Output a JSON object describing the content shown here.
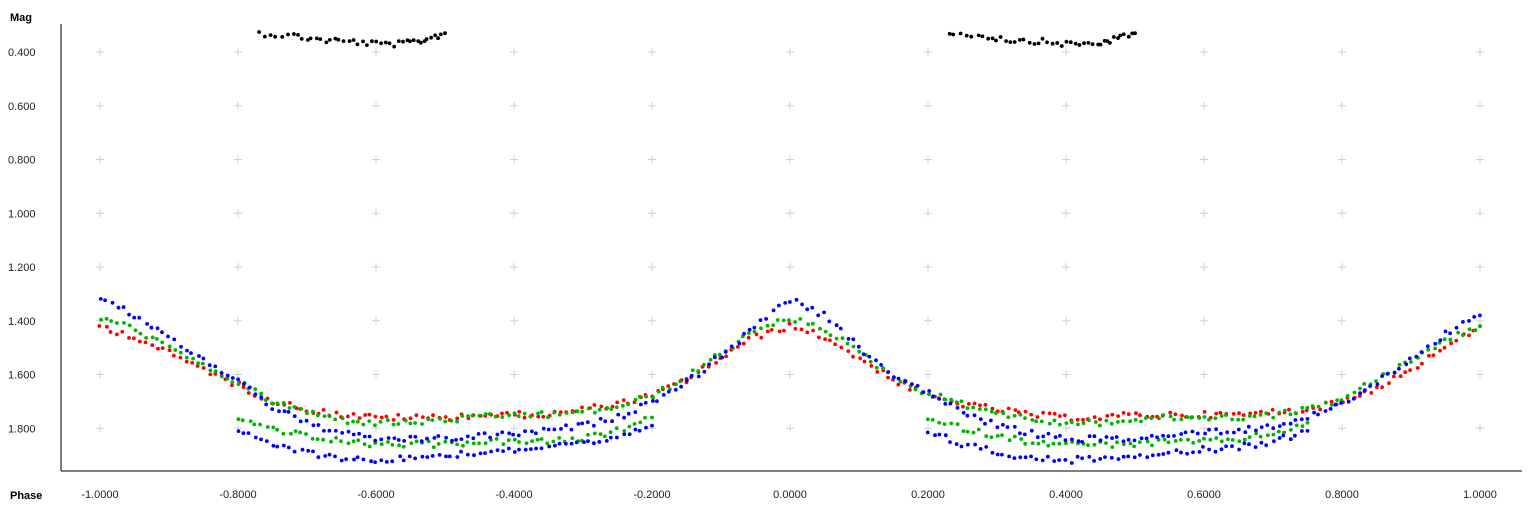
{
  "chart_data": {
    "type": "scatter",
    "title": "",
    "xlabel": "Phase",
    "ylabel": "Mag",
    "xlim": [
      -1.0,
      1.0
    ],
    "ylim": [
      1.92,
      0.34
    ],
    "y_inverted": true,
    "grid": "plus-markers",
    "x_ticks": [
      -1.0,
      -0.8,
      -0.6,
      -0.4,
      -0.2,
      0.0,
      0.2,
      0.4,
      0.6,
      0.8,
      1.0
    ],
    "x_tick_labels": [
      "-1.0000",
      "-0.8000",
      "-0.6000",
      "-0.4000",
      "-0.2000",
      "0.0000",
      "0.2000",
      "0.4000",
      "0.6000",
      "0.8000",
      "1.0000"
    ],
    "y_ticks": [
      0.4,
      0.6,
      0.8,
      1.0,
      1.2,
      1.4,
      1.6,
      1.8
    ],
    "y_tick_labels": [
      "0.400",
      "0.600",
      "0.800",
      "1.000",
      "1.200",
      "1.400",
      "1.600",
      "1.800"
    ],
    "series": [
      {
        "color": "#000000",
        "segments": [
          {
            "x": [
              -0.77,
              -0.72,
              -0.68,
              -0.64,
              -0.6,
              -0.56,
              -0.53,
              -0.5
            ],
            "y": [
              0.33,
              0.34,
              0.355,
              0.36,
              0.37,
              0.37,
              0.355,
              0.33
            ]
          },
          {
            "x": [
              0.23,
              0.28,
              0.32,
              0.36,
              0.4,
              0.44,
              0.47,
              0.5
            ],
            "y": [
              0.33,
              0.34,
              0.355,
              0.36,
              0.37,
              0.37,
              0.355,
              0.33
            ]
          }
        ]
      },
      {
        "color": "#ff0000",
        "segments": [
          {
            "x": [
              -1.0,
              -0.95,
              -0.9,
              -0.85,
              -0.8,
              -0.75,
              -0.7,
              -0.65,
              -0.6,
              -0.55,
              -0.5,
              -0.45,
              -0.4,
              -0.35,
              -0.3,
              -0.25,
              -0.2,
              -0.15,
              -0.1,
              -0.05,
              0.0,
              0.05,
              0.1,
              0.15,
              0.2,
              0.25,
              0.3,
              0.35,
              0.4,
              0.45,
              0.5,
              0.55,
              0.6,
              0.65,
              0.7,
              0.75,
              0.8,
              0.85,
              0.9,
              0.95,
              1.0
            ],
            "y": [
              1.42,
              1.46,
              1.52,
              1.58,
              1.64,
              1.7,
              1.73,
              1.75,
              1.76,
              1.76,
              1.76,
              1.75,
              1.75,
              1.75,
              1.73,
              1.71,
              1.68,
              1.62,
              1.54,
              1.46,
              1.42,
              1.46,
              1.54,
              1.62,
              1.68,
              1.71,
              1.73,
              1.75,
              1.76,
              1.76,
              1.75,
              1.75,
              1.75,
              1.75,
              1.74,
              1.73,
              1.7,
              1.65,
              1.58,
              1.5,
              1.42
            ]
          }
        ]
      },
      {
        "color": "#00b400",
        "segments": [
          {
            "x": [
              -1.0,
              -0.95,
              -0.9,
              -0.85,
              -0.8,
              -0.75,
              -0.7,
              -0.65,
              -0.6,
              -0.55,
              -0.5,
              -0.45,
              -0.4,
              -0.35,
              -0.3,
              -0.25,
              -0.2,
              -0.15,
              -0.1,
              -0.05,
              0.0,
              0.05,
              0.1,
              0.15,
              0.2,
              0.25,
              0.3,
              0.35,
              0.4,
              0.45,
              0.5,
              0.55,
              0.6,
              0.65,
              0.7,
              0.75,
              0.8,
              0.85,
              0.9,
              0.95,
              1.0
            ],
            "y": [
              1.39,
              1.43,
              1.5,
              1.57,
              1.63,
              1.7,
              1.74,
              1.77,
              1.78,
              1.78,
              1.77,
              1.76,
              1.75,
              1.75,
              1.74,
              1.72,
              1.68,
              1.61,
              1.52,
              1.44,
              1.39,
              1.43,
              1.52,
              1.61,
              1.67,
              1.71,
              1.74,
              1.77,
              1.78,
              1.78,
              1.77,
              1.76,
              1.76,
              1.76,
              1.75,
              1.73,
              1.69,
              1.62,
              1.55,
              1.47,
              1.42
            ]
          },
          {
            "x": [
              -0.8,
              -0.75,
              -0.7,
              -0.65,
              -0.6,
              -0.55,
              -0.5,
              -0.45,
              -0.4,
              -0.35,
              -0.3,
              -0.25,
              -0.2
            ],
            "y": [
              1.77,
              1.8,
              1.83,
              1.85,
              1.86,
              1.86,
              1.86,
              1.85,
              1.85,
              1.85,
              1.84,
              1.81,
              1.76
            ]
          },
          {
            "x": [
              0.2,
              0.25,
              0.3,
              0.35,
              0.4,
              0.45,
              0.5,
              0.55,
              0.6,
              0.65,
              0.7,
              0.75
            ],
            "y": [
              1.77,
              1.8,
              1.83,
              1.85,
              1.86,
              1.86,
              1.86,
              1.85,
              1.85,
              1.84,
              1.82,
              1.78
            ]
          }
        ]
      },
      {
        "color": "#0000ff",
        "segments": [
          {
            "x": [
              -1.0,
              -0.95,
              -0.9,
              -0.85,
              -0.8,
              -0.75,
              -0.7,
              -0.65,
              -0.6,
              -0.55,
              -0.5,
              -0.45,
              -0.4,
              -0.35,
              -0.3,
              -0.25,
              -0.2,
              -0.15,
              -0.1,
              -0.05,
              0.0,
              0.05,
              0.1,
              0.15,
              0.2,
              0.25,
              0.3,
              0.35,
              0.4,
              0.45,
              0.5,
              0.55,
              0.6,
              0.65,
              0.7,
              0.75,
              0.8,
              0.85,
              0.9,
              0.95,
              1.0
            ],
            "y": [
              1.32,
              1.38,
              1.46,
              1.55,
              1.62,
              1.72,
              1.78,
              1.82,
              1.84,
              1.84,
              1.84,
              1.83,
              1.82,
              1.81,
              1.79,
              1.76,
              1.7,
              1.63,
              1.53,
              1.42,
              1.32,
              1.38,
              1.5,
              1.6,
              1.67,
              1.74,
              1.79,
              1.82,
              1.84,
              1.84,
              1.84,
              1.83,
              1.81,
              1.81,
              1.79,
              1.76,
              1.71,
              1.63,
              1.54,
              1.45,
              1.38
            ]
          },
          {
            "x": [
              -0.8,
              -0.75,
              -0.7,
              -0.65,
              -0.6,
              -0.55,
              -0.5,
              -0.45,
              -0.4,
              -0.35,
              -0.3,
              -0.25,
              -0.2
            ],
            "y": [
              1.81,
              1.86,
              1.89,
              1.91,
              1.92,
              1.91,
              1.9,
              1.89,
              1.88,
              1.87,
              1.86,
              1.84,
              1.79
            ]
          },
          {
            "x": [
              0.2,
              0.25,
              0.3,
              0.35,
              0.4,
              0.45,
              0.5,
              0.55,
              0.6,
              0.65,
              0.7,
              0.75
            ],
            "y": [
              1.81,
              1.86,
              1.89,
              1.91,
              1.92,
              1.91,
              1.9,
              1.89,
              1.88,
              1.87,
              1.85,
              1.81
            ]
          }
        ]
      }
    ]
  }
}
